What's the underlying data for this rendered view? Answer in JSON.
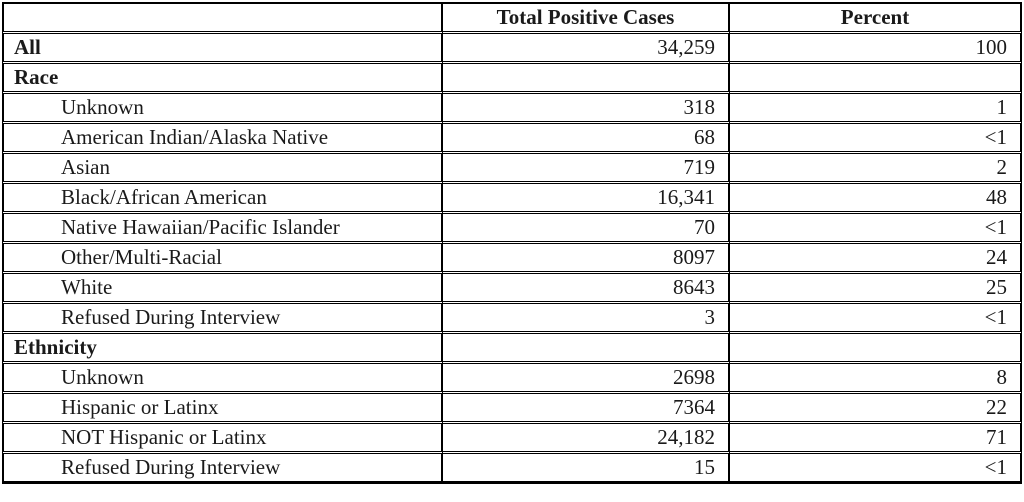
{
  "colors": {
    "border": "#000000",
    "text": "#1a1a1a",
    "background": "#ffffff"
  },
  "table": {
    "columns": [
      "",
      "Total Positive Cases",
      "Percent"
    ],
    "rows": [
      {
        "label": "All",
        "bold": true,
        "indent": false,
        "cases": "34,259",
        "percent": "100"
      },
      {
        "label": "Race",
        "bold": true,
        "indent": false,
        "cases": "",
        "percent": ""
      },
      {
        "label": "Unknown",
        "bold": false,
        "indent": true,
        "cases": "318",
        "percent": "1"
      },
      {
        "label": "American Indian/Alaska Native",
        "bold": false,
        "indent": true,
        "cases": "68",
        "percent": "<1"
      },
      {
        "label": "Asian",
        "bold": false,
        "indent": true,
        "cases": "719",
        "percent": "2"
      },
      {
        "label": "Black/African American",
        "bold": false,
        "indent": true,
        "cases": "16,341",
        "percent": "48"
      },
      {
        "label": "Native Hawaiian/Pacific Islander",
        "bold": false,
        "indent": true,
        "cases": "70",
        "percent": "<1"
      },
      {
        "label": "Other/Multi-Racial",
        "bold": false,
        "indent": true,
        "cases": "8097",
        "percent": "24"
      },
      {
        "label": "White",
        "bold": false,
        "indent": true,
        "cases": "8643",
        "percent": "25"
      },
      {
        "label": "Refused During Interview",
        "bold": false,
        "indent": true,
        "cases": "3",
        "percent": "<1"
      },
      {
        "label": "Ethnicity",
        "bold": true,
        "indent": false,
        "cases": "",
        "percent": ""
      },
      {
        "label": "Unknown",
        "bold": false,
        "indent": true,
        "cases": "2698",
        "percent": "8"
      },
      {
        "label": "Hispanic or Latinx",
        "bold": false,
        "indent": true,
        "cases": "7364",
        "percent": "22"
      },
      {
        "label": "NOT Hispanic or Latinx",
        "bold": false,
        "indent": true,
        "cases": "24,182",
        "percent": "71"
      },
      {
        "label": "Refused During Interview",
        "bold": false,
        "indent": true,
        "cases": "15",
        "percent": "<1"
      }
    ]
  }
}
